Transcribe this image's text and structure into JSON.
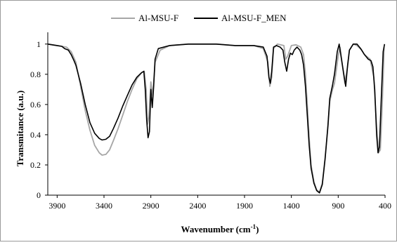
{
  "chart_data": {
    "type": "line",
    "xlabel": "Wavenumber (cm",
    "xlabel_sup": "-1",
    "xlabel_tail": ")",
    "ylabel": "Transmitance (a.u.)",
    "xlim": [
      4000,
      400
    ],
    "ylim": [
      0,
      1.05
    ],
    "x_reversed": true,
    "xticks": [
      3900,
      3400,
      2900,
      2400,
      1900,
      1400,
      900,
      400
    ],
    "yticks": [
      0,
      0.2,
      0.4,
      0.6,
      0.8,
      1
    ],
    "grid": false,
    "legend_position": "top",
    "series": [
      {
        "name": "Al-MSU-F",
        "color": "#a6a6a6",
        "points": [
          [
            4000,
            1.0
          ],
          [
            3900,
            0.99
          ],
          [
            3800,
            0.98
          ],
          [
            3750,
            0.95
          ],
          [
            3700,
            0.88
          ],
          [
            3650,
            0.72
          ],
          [
            3600,
            0.56
          ],
          [
            3550,
            0.43
          ],
          [
            3500,
            0.33
          ],
          [
            3450,
            0.28
          ],
          [
            3420,
            0.265
          ],
          [
            3380,
            0.27
          ],
          [
            3340,
            0.3
          ],
          [
            3300,
            0.36
          ],
          [
            3250,
            0.44
          ],
          [
            3200,
            0.53
          ],
          [
            3150,
            0.62
          ],
          [
            3100,
            0.7
          ],
          [
            3050,
            0.77
          ],
          [
            3000,
            0.81
          ],
          [
            2970,
            0.82
          ],
          [
            2950,
            0.7
          ],
          [
            2935,
            0.47
          ],
          [
            2920,
            0.52
          ],
          [
            2900,
            0.75
          ],
          [
            2880,
            0.66
          ],
          [
            2855,
            0.88
          ],
          [
            2800,
            0.96
          ],
          [
            2700,
            0.99
          ],
          [
            2500,
            1.0
          ],
          [
            2200,
            1.0
          ],
          [
            2000,
            0.99
          ],
          [
            1800,
            0.99
          ],
          [
            1700,
            0.97
          ],
          [
            1650,
            0.88
          ],
          [
            1630,
            0.72
          ],
          [
            1610,
            0.78
          ],
          [
            1590,
            0.97
          ],
          [
            1550,
            1.0
          ],
          [
            1480,
            0.99
          ],
          [
            1460,
            0.9
          ],
          [
            1440,
            0.92
          ],
          [
            1400,
            0.99
          ],
          [
            1350,
            0.995
          ],
          [
            1300,
            0.98
          ],
          [
            1270,
            0.93
          ],
          [
            1250,
            0.8
          ],
          [
            1230,
            0.6
          ],
          [
            1210,
            0.38
          ],
          [
            1190,
            0.2
          ],
          [
            1160,
            0.09
          ],
          [
            1130,
            0.035
          ],
          [
            1100,
            0.02
          ],
          [
            1070,
            0.08
          ],
          [
            1040,
            0.25
          ],
          [
            1010,
            0.45
          ],
          [
            990,
            0.62
          ],
          [
            960,
            0.7
          ],
          [
            940,
            0.74
          ],
          [
            900,
            0.92
          ],
          [
            880,
            0.98
          ],
          [
            860,
            0.88
          ],
          [
            830,
            0.74
          ],
          [
            800,
            0.85
          ],
          [
            780,
            0.96
          ],
          [
            740,
            1.0
          ],
          [
            700,
            0.99
          ],
          [
            650,
            0.96
          ],
          [
            620,
            0.93
          ],
          [
            580,
            0.91
          ],
          [
            560,
            0.9
          ],
          [
            520,
            0.78
          ],
          [
            490,
            0.45
          ],
          [
            470,
            0.28
          ],
          [
            450,
            0.3
          ],
          [
            430,
            0.6
          ],
          [
            410,
            0.98
          ]
        ]
      },
      {
        "name": "Al-MSU-F_MEN",
        "color": "#000000",
        "points": [
          [
            4000,
            1.0
          ],
          [
            3900,
            0.99
          ],
          [
            3850,
            0.985
          ],
          [
            3820,
            0.97
          ],
          [
            3780,
            0.96
          ],
          [
            3750,
            0.93
          ],
          [
            3720,
            0.89
          ],
          [
            3700,
            0.86
          ],
          [
            3650,
            0.74
          ],
          [
            3600,
            0.6
          ],
          [
            3550,
            0.48
          ],
          [
            3500,
            0.41
          ],
          [
            3450,
            0.375
          ],
          [
            3420,
            0.365
          ],
          [
            3380,
            0.37
          ],
          [
            3340,
            0.39
          ],
          [
            3300,
            0.44
          ],
          [
            3250,
            0.51
          ],
          [
            3200,
            0.59
          ],
          [
            3150,
            0.66
          ],
          [
            3100,
            0.73
          ],
          [
            3050,
            0.78
          ],
          [
            3000,
            0.81
          ],
          [
            2975,
            0.82
          ],
          [
            2960,
            0.7
          ],
          [
            2945,
            0.5
          ],
          [
            2930,
            0.38
          ],
          [
            2915,
            0.42
          ],
          [
            2900,
            0.7
          ],
          [
            2885,
            0.58
          ],
          [
            2870,
            0.72
          ],
          [
            2855,
            0.9
          ],
          [
            2820,
            0.97
          ],
          [
            2700,
            0.99
          ],
          [
            2500,
            1.0
          ],
          [
            2200,
            1.0
          ],
          [
            2000,
            0.99
          ],
          [
            1800,
            0.99
          ],
          [
            1700,
            0.98
          ],
          [
            1660,
            0.92
          ],
          [
            1640,
            0.78
          ],
          [
            1625,
            0.74
          ],
          [
            1610,
            0.82
          ],
          [
            1590,
            0.98
          ],
          [
            1560,
            0.99
          ],
          [
            1520,
            0.98
          ],
          [
            1490,
            0.96
          ],
          [
            1470,
            0.88
          ],
          [
            1450,
            0.82
          ],
          [
            1430,
            0.9
          ],
          [
            1410,
            0.94
          ],
          [
            1390,
            0.93
          ],
          [
            1370,
            0.96
          ],
          [
            1340,
            0.98
          ],
          [
            1310,
            0.96
          ],
          [
            1290,
            0.93
          ],
          [
            1270,
            0.86
          ],
          [
            1250,
            0.72
          ],
          [
            1230,
            0.53
          ],
          [
            1210,
            0.33
          ],
          [
            1190,
            0.18
          ],
          [
            1160,
            0.08
          ],
          [
            1130,
            0.03
          ],
          [
            1100,
            0.015
          ],
          [
            1070,
            0.07
          ],
          [
            1040,
            0.24
          ],
          [
            1010,
            0.46
          ],
          [
            990,
            0.64
          ],
          [
            960,
            0.73
          ],
          [
            940,
            0.8
          ],
          [
            910,
            0.95
          ],
          [
            890,
            1.0
          ],
          [
            870,
            0.92
          ],
          [
            840,
            0.8
          ],
          [
            820,
            0.72
          ],
          [
            800,
            0.86
          ],
          [
            780,
            0.96
          ],
          [
            740,
            1.0
          ],
          [
            700,
            1.0
          ],
          [
            660,
            0.97
          ],
          [
            620,
            0.93
          ],
          [
            580,
            0.9
          ],
          [
            550,
            0.89
          ],
          [
            530,
            0.85
          ],
          [
            510,
            0.7
          ],
          [
            490,
            0.4
          ],
          [
            475,
            0.28
          ],
          [
            460,
            0.32
          ],
          [
            440,
            0.65
          ],
          [
            420,
            0.95
          ],
          [
            405,
            1.0
          ]
        ]
      }
    ]
  }
}
